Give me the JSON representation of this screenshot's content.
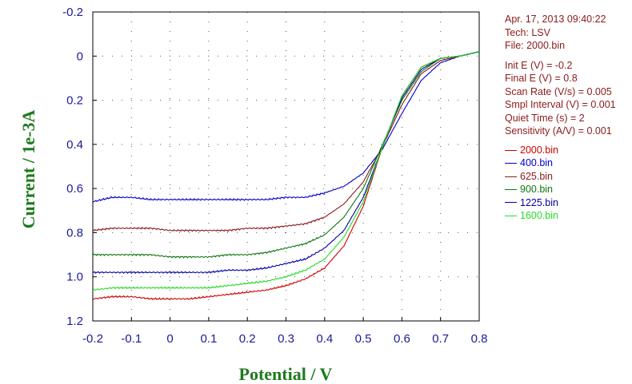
{
  "info": {
    "date": "Apr. 17, 2013   09:40:22",
    "tech": "Tech: LSV",
    "file": "File: 2000.bin",
    "params": [
      "Init E (V) = -0.2",
      "Final E (V) = 0.8",
      "Scan Rate (V/s) = 0.005",
      "Smpl Interval (V) = 0.001",
      "Quiet Time (s) = 2",
      "Sensitivity (A/V) = 0.001"
    ]
  },
  "colors": {
    "axis_text": "#1a1a99",
    "axis_label": "#1e7a1e",
    "info_text": "#8b1a1a"
  },
  "chart_data": {
    "type": "line",
    "xlabel": "Potential / V",
    "ylabel": "Current / 1e-3A",
    "xlim": [
      -0.2,
      0.8
    ],
    "ylim": [
      -0.2,
      1.2
    ],
    "y_inverted": true,
    "grid": true,
    "legend_position": "right",
    "x_ticks": [
      "-0.2",
      "-0.1",
      "0",
      "0.1",
      "0.2",
      "0.3",
      "0.4",
      "0.5",
      "0.6",
      "0.7",
      "0.8"
    ],
    "y_ticks": [
      "-0.2",
      "0",
      "0.2",
      "0.4",
      "0.6",
      "0.8",
      "1.0",
      "1.2"
    ],
    "x": [
      -0.2,
      -0.15,
      -0.1,
      -0.05,
      0.0,
      0.05,
      0.1,
      0.15,
      0.2,
      0.25,
      0.3,
      0.35,
      0.4,
      0.45,
      0.5,
      0.55,
      0.6,
      0.65,
      0.7,
      0.75,
      0.8
    ],
    "series": [
      {
        "name": "2000.bin",
        "color": "#cc0000",
        "values": [
          1.1,
          1.09,
          1.09,
          1.1,
          1.1,
          1.1,
          1.09,
          1.08,
          1.07,
          1.06,
          1.04,
          1.01,
          0.96,
          0.86,
          0.68,
          0.41,
          0.18,
          0.05,
          0.01,
          0.0,
          -0.02
        ]
      },
      {
        "name": "400.bin",
        "color": "#0000cc",
        "values": [
          0.66,
          0.64,
          0.64,
          0.65,
          0.65,
          0.65,
          0.65,
          0.65,
          0.65,
          0.65,
          0.64,
          0.64,
          0.62,
          0.59,
          0.53,
          0.42,
          0.26,
          0.11,
          0.03,
          0.0,
          -0.02
        ]
      },
      {
        "name": "625.bin",
        "color": "#8b1a1a",
        "values": [
          0.79,
          0.78,
          0.78,
          0.78,
          0.79,
          0.79,
          0.79,
          0.79,
          0.78,
          0.78,
          0.77,
          0.76,
          0.73,
          0.67,
          0.57,
          0.41,
          0.22,
          0.08,
          0.02,
          0.0,
          -0.02
        ]
      },
      {
        "name": "900.bin",
        "color": "#117711",
        "values": [
          0.9,
          0.9,
          0.9,
          0.9,
          0.91,
          0.91,
          0.91,
          0.9,
          0.9,
          0.89,
          0.87,
          0.85,
          0.81,
          0.73,
          0.6,
          0.4,
          0.2,
          0.07,
          0.01,
          0.0,
          -0.02
        ]
      },
      {
        "name": "1225.bin",
        "color": "#0000aa",
        "values": [
          0.98,
          0.98,
          0.98,
          0.98,
          0.98,
          0.98,
          0.98,
          0.97,
          0.97,
          0.96,
          0.94,
          0.92,
          0.87,
          0.79,
          0.64,
          0.41,
          0.19,
          0.06,
          0.01,
          0.0,
          -0.02
        ]
      },
      {
        "name": "1600.bin",
        "color": "#22dd22",
        "values": [
          1.06,
          1.05,
          1.05,
          1.05,
          1.05,
          1.05,
          1.05,
          1.04,
          1.03,
          1.02,
          1.0,
          0.97,
          0.92,
          0.82,
          0.66,
          0.41,
          0.18,
          0.05,
          0.01,
          0.0,
          -0.02
        ]
      }
    ]
  }
}
